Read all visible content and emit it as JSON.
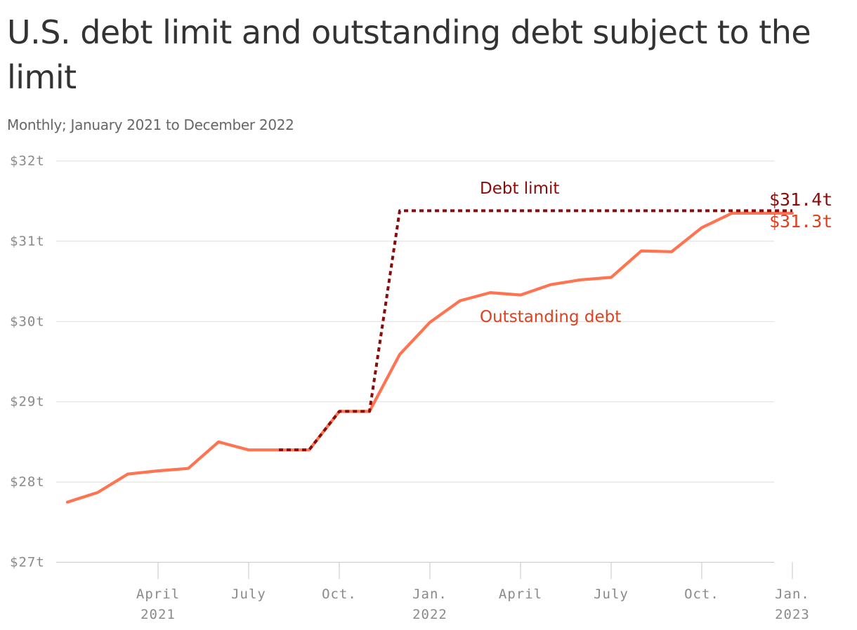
{
  "chart_data": {
    "type": "line",
    "title": "U.S. debt limit and outstanding debt subject to the limit",
    "subtitle": "Monthly; January 2021 to December 2022",
    "y_unit": "trillion USD",
    "ylim": [
      27,
      32
    ],
    "grid": true,
    "y_ticks": [
      {
        "value": 27,
        "label": "$27t"
      },
      {
        "value": 28,
        "label": "$28t"
      },
      {
        "value": 29,
        "label": "$29t"
      },
      {
        "value": 30,
        "label": "$30t"
      },
      {
        "value": 31,
        "label": "$31t"
      },
      {
        "value": 32,
        "label": "$32t"
      }
    ],
    "x_ticks": [
      {
        "x": "2021-04",
        "label": "April",
        "sublabel": "2021"
      },
      {
        "x": "2021-07",
        "label": "July",
        "sublabel": ""
      },
      {
        "x": "2021-10",
        "label": "Oct.",
        "sublabel": ""
      },
      {
        "x": "2022-01",
        "label": "Jan.",
        "sublabel": "2022"
      },
      {
        "x": "2022-04",
        "label": "April",
        "sublabel": ""
      },
      {
        "x": "2022-07",
        "label": "July",
        "sublabel": ""
      },
      {
        "x": "2022-10",
        "label": "Oct.",
        "sublabel": ""
      },
      {
        "x": "2023-01",
        "label": "Jan.",
        "sublabel": "2023"
      }
    ],
    "series": [
      {
        "name": "Outstanding debt",
        "color": "#ff7350",
        "label_color": "#e0401e",
        "style": "solid",
        "end_label": "$31.3t",
        "x": [
          "2021-01",
          "2021-02",
          "2021-03",
          "2021-04",
          "2021-05",
          "2021-06",
          "2021-07",
          "2021-08",
          "2021-09",
          "2021-10",
          "2021-11",
          "2021-12",
          "2022-01",
          "2022-02",
          "2022-03",
          "2022-04",
          "2022-05",
          "2022-06",
          "2022-07",
          "2022-08",
          "2022-09",
          "2022-10",
          "2022-11",
          "2022-12",
          "2023-01"
        ],
        "values": [
          27.75,
          27.87,
          28.1,
          28.14,
          28.17,
          28.5,
          28.4,
          28.4,
          28.4,
          28.88,
          28.88,
          29.59,
          29.99,
          30.26,
          30.36,
          30.33,
          30.46,
          30.52,
          30.55,
          30.88,
          30.87,
          31.17,
          31.35,
          31.35,
          31.35
        ]
      },
      {
        "name": "Debt limit",
        "color": "#8b0a0a",
        "label_color": "#8b0a0a",
        "style": "dashed",
        "end_label": "$31.4t",
        "x": [
          "2021-08",
          "2021-09",
          "2021-10",
          "2021-11",
          "2021-12",
          "2022-01",
          "2023-01"
        ],
        "values": [
          28.4,
          28.4,
          28.88,
          28.88,
          31.38,
          31.38,
          31.38
        ]
      }
    ]
  }
}
